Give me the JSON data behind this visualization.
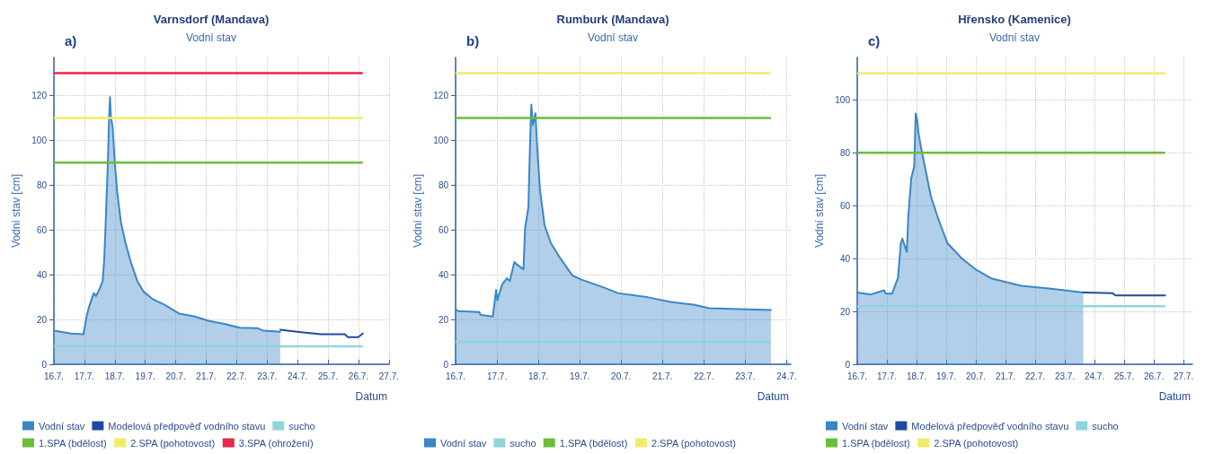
{
  "chart_data": [
    {
      "type": "area",
      "title": "Varnsdorf (Mandava)",
      "subtitle": "Vodní stav",
      "xlabel": "Datum",
      "ylabel": "Vodní stav [cm]",
      "annotations": [
        "a)"
      ],
      "grid": true,
      "legend": "bottom left",
      "xlim": [
        "--07-16",
        "--07-27"
      ],
      "xticks": [
        {
          "value": "--07-16",
          "label": "16.7."
        },
        {
          "value": "--07-17",
          "label": "17.7."
        },
        {
          "value": "--07-18",
          "label": "18.7."
        },
        {
          "value": "--07-19",
          "label": "19.7."
        },
        {
          "value": "--07-20",
          "label": "20.7."
        },
        {
          "value": "--07-21",
          "label": "21.7."
        },
        {
          "value": "--07-22",
          "label": "22.7."
        },
        {
          "value": "--07-23",
          "label": "23.7."
        },
        {
          "value": "--07-24",
          "label": "24.7."
        },
        {
          "value": "--07-25",
          "label": "25.7."
        },
        {
          "value": "--07-26",
          "label": "26.7."
        },
        {
          "value": "--07-27",
          "label": "27.7."
        }
      ],
      "ylim": [
        0,
        137
      ],
      "yticks": [
        0,
        20,
        40,
        60,
        80,
        100,
        120
      ],
      "series": [
        {
          "name": "Vodní stav",
          "color": "#3b86c6",
          "x": [
            "--07-16T00:00",
            "--07-16T13:41",
            "--07-16T23:17",
            "--07-17T01:41",
            "--07-17T03:50",
            "--07-17T07:26",
            "--07-17T09:07",
            "--07-17T11:02",
            "--07-17T14:24",
            "--07-17T15:36",
            "--07-17T16:48",
            "--07-17T18:29",
            "--07-17T19:26",
            "--07-17T20:10",
            "--07-17T20:53",
            "--07-17T22:19",
            "--07-18T00:00",
            "--07-18T01:55",
            "--07-18T04:48",
            "--07-18T08:24",
            "--07-18T12:58",
            "--07-18T17:46",
            "--07-18T22:34",
            "--07-19T05:31",
            "--07-19T15:07",
            "--07-20T02:53",
            "--07-20T14:53",
            "--07-21T02:24",
            "--07-21T14:24",
            "--07-22T02:24",
            "--07-22T16:34",
            "--07-22T21:07",
            "--07-23T10:19"
          ],
          "values": [
            15.0,
            13.7,
            13.4,
            21.3,
            25.9,
            31.8,
            30.5,
            32.5,
            37.1,
            46.3,
            63.4,
            89.7,
            109.5,
            119.3,
            110.8,
            105.5,
            89.7,
            76.6,
            63.4,
            54.2,
            45,
            37.1,
            32.5,
            29.2,
            26.6,
            22.6,
            21.3,
            19.3,
            18.0,
            16.3,
            16.1,
            15.0,
            14.5
          ]
        },
        {
          "name": "Modelová předpověď vodního stavu",
          "type": "line",
          "color": "#1f4aa0",
          "x": [
            "--07-23T10:19",
            "--07-23T23:17",
            "--07-24T18:14",
            "--07-25T13:12",
            "--07-25T15:36",
            "--07-25T23:46",
            "--07-26T03:22"
          ],
          "values": [
            15.4,
            14.5,
            13.4,
            13.4,
            12.1,
            12.1,
            13.7
          ]
        }
      ],
      "ref_lines": [
        {
          "axis": "y",
          "value": 8,
          "label": "sucho",
          "color": "#8fd5dc"
        },
        {
          "axis": "y",
          "value": 90,
          "label": "1.SPA (bdělost)",
          "color": "#6cbd3a"
        },
        {
          "axis": "y",
          "value": 110,
          "label": "2.SPA (pohotovost)",
          "color": "#f0ec6a"
        },
        {
          "axis": "y",
          "value": 130,
          "label": "3.SPA (ohrožení)",
          "color": "#e8254a"
        }
      ]
    },
    {
      "type": "area",
      "title": "Rumburk (Mandava)",
      "subtitle": "Vodní stav",
      "xlabel": "Datum",
      "ylabel": "Vodní stav [cm]",
      "annotations": [
        "b)"
      ],
      "grid": true,
      "legend": "bottom left",
      "xlim": [
        "--07-16",
        "--07-24T02:24"
      ],
      "xticks": [
        {
          "value": "--07-16",
          "label": "16.7."
        },
        {
          "value": "--07-17",
          "label": "17.7."
        },
        {
          "value": "--07-18",
          "label": "18.7."
        },
        {
          "value": "--07-19",
          "label": "19.7."
        },
        {
          "value": "--07-20",
          "label": "20.7."
        },
        {
          "value": "--07-21",
          "label": "21.7."
        },
        {
          "value": "--07-22",
          "label": "22.7."
        },
        {
          "value": "--07-23",
          "label": "23.7."
        },
        {
          "value": "--07-24",
          "label": "24.7."
        }
      ],
      "ylim": [
        0,
        137
      ],
      "yticks": [
        0,
        20,
        40,
        60,
        80,
        100,
        120
      ],
      "series": [
        {
          "name": "Vodní stav",
          "color": "#3b86c6",
          "x": [
            "--07-16T00:00",
            "--07-16T01:26",
            "--07-16T13:41",
            "--07-16T14:38",
            "--07-16T21:36",
            "--07-16T23:31",
            "--07-17T00:14",
            "--07-17T03:07",
            "--07-17T05:46",
            "--07-17T07:26",
            "--07-17T10:05",
            "--07-17T12:00",
            "--07-17T15:22",
            "--07-17T16:19",
            "--07-17T18:14",
            "--07-17T18:58",
            "--07-17T19:55",
            "--07-17T20:53",
            "--07-17T22:19",
            "--07-17T23:17",
            "--07-18T00:58",
            "--07-18T03:36",
            "--07-18T07:12",
            "--07-18T12:29",
            "--07-18T19:41",
            "--07-19T00:58",
            "--07-19T13:12",
            "--07-19T22:05",
            "--07-20T15:36",
            "--07-21T04:05",
            "--07-21T18:00",
            "--07-22T03:07",
            "--07-22T20:38",
            "--07-23T14:53"
          ],
          "values": [
            24.6,
            23.7,
            23.3,
            22,
            21.3,
            33.2,
            28.6,
            35.8,
            38.4,
            37.1,
            45.7,
            44.3,
            42.4,
            60.8,
            70,
            92.4,
            116,
            106.8,
            112.1,
            97.6,
            77.9,
            62.1,
            54.2,
            47.6,
            39.7,
            37.8,
            34.5,
            31.8,
            29.9,
            27.9,
            26.6,
            25,
            24.6,
            24.2
          ]
        }
      ],
      "ref_lines": [
        {
          "axis": "y",
          "value": 10,
          "label": "sucho",
          "color": "#8fd5dc"
        },
        {
          "axis": "y",
          "value": 110,
          "label": "1.SPA (bdělost)",
          "color": "#6cbd3a"
        },
        {
          "axis": "y",
          "value": 130,
          "label": "2.SPA (pohotovost)",
          "color": "#f0ec6a"
        }
      ]
    },
    {
      "type": "area",
      "title": "Hřensko (Kamenice)",
      "subtitle": "Vodní stav",
      "xlabel": "Datum",
      "ylabel": "Vodní stav [cm]",
      "annotations": [
        "c)"
      ],
      "grid": true,
      "legend": "bottom left",
      "xlim": [
        "--07-16",
        "--07-27T07:12"
      ],
      "xticks": [
        {
          "value": "--07-16",
          "label": "16.7."
        },
        {
          "value": "--07-17",
          "label": "17.7."
        },
        {
          "value": "--07-18",
          "label": "18.7."
        },
        {
          "value": "--07-19",
          "label": "19.7."
        },
        {
          "value": "--07-20",
          "label": "20.7."
        },
        {
          "value": "--07-21",
          "label": "21.7."
        },
        {
          "value": "--07-22",
          "label": "22.7."
        },
        {
          "value": "--07-23",
          "label": "23.7."
        },
        {
          "value": "--07-24",
          "label": "24.7."
        },
        {
          "value": "--07-25",
          "label": "25.7."
        },
        {
          "value": "--07-26",
          "label": "26.7."
        },
        {
          "value": "--07-27",
          "label": "27.7."
        }
      ],
      "ylim": [
        0,
        116
      ],
      "yticks": [
        0,
        20,
        40,
        60,
        80,
        100
      ],
      "series": [
        {
          "name": "Vodní stav",
          "color": "#3b86c6",
          "x": [
            "--07-16T00:00",
            "--07-16T11:02",
            "--07-16T21:50",
            "--07-16T23:02",
            "--07-17T04:05",
            "--07-17T08:53",
            "--07-17T11:17",
            "--07-17T12:29",
            "--07-17T16:05",
            "--07-17T17:17",
            "--07-17T19:41",
            "--07-17T22:05",
            "--07-17T23:17",
            "--07-18T00:29",
            "--07-18T01:41",
            "--07-18T03:50",
            "--07-18T06:43",
            "--07-18T11:31",
            "--07-18T17:46",
            "--07-19T00:58",
            "--07-19T12:00",
            "--07-20T00:00",
            "--07-20T12:14",
            "--07-21T12:29",
            "--07-22T12:43",
            "--07-23T14:53"
          ],
          "values": [
            27.1,
            26.4,
            28,
            26.7,
            26.7,
            32.5,
            45.8,
            47.5,
            42.5,
            55.8,
            70.3,
            74.8,
            94.8,
            92.5,
            87,
            81.4,
            74.8,
            63.6,
            54.7,
            45.8,
            40.3,
            35.8,
            32.5,
            29.7,
            28.6,
            27.1
          ]
        },
        {
          "name": "Modelová předpověď vodního stavu",
          "type": "line",
          "color": "#1f4aa0",
          "x": [
            "--07-23T14:53",
            "--07-24T14:38",
            "--07-24T17:02",
            "--07-26T09:07"
          ],
          "values": [
            27.1,
            26.9,
            26,
            26
          ]
        }
      ],
      "ref_lines": [
        {
          "axis": "y",
          "value": 22,
          "label": "sucho",
          "color": "#8fd5dc"
        },
        {
          "axis": "y",
          "value": 80,
          "label": "1.SPA (bdělost)",
          "color": "#6cbd3a"
        },
        {
          "axis": "y",
          "value": 110,
          "label": "2.SPA (pohotovost)",
          "color": "#f0ec6a"
        }
      ]
    }
  ]
}
